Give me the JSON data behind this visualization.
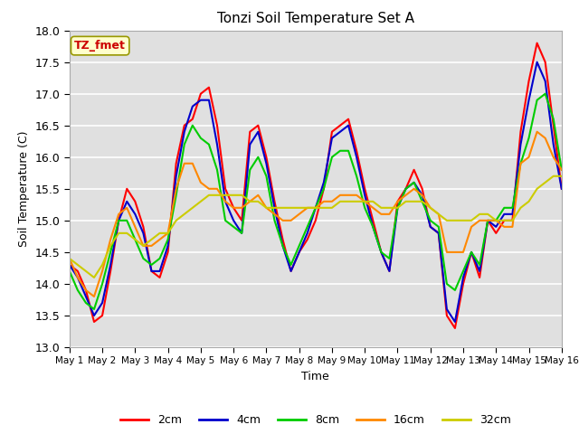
{
  "title": "Tonzi Soil Temperature Set A",
  "xlabel": "Time",
  "ylabel": "Soil Temperature (C)",
  "ylim": [
    13.0,
    18.0
  ],
  "yticks": [
    13.0,
    13.5,
    14.0,
    14.5,
    15.0,
    15.5,
    16.0,
    16.5,
    17.0,
    17.5,
    18.0
  ],
  "xtick_labels": [
    "May 1",
    "May 2",
    "May 3",
    "May 4",
    "May 5",
    "May 6",
    "May 7",
    "May 8",
    "May 9",
    "May 10",
    "May 11",
    "May 12",
    "May 13",
    "May 14",
    "May 15",
    "May 16"
  ],
  "annotation_text": "TZ_fmet",
  "annotation_color": "#cc0000",
  "annotation_bg": "#ffffcc",
  "annotation_border": "#999900",
  "bg_color": "#e0e0e0",
  "fig_color": "#ffffff",
  "grid_color": "#ffffff",
  "series": {
    "2cm": {
      "color": "#ff0000",
      "lw": 1.5
    },
    "4cm": {
      "color": "#0000cc",
      "lw": 1.5
    },
    "8cm": {
      "color": "#00cc00",
      "lw": 1.5
    },
    "16cm": {
      "color": "#ff8800",
      "lw": 1.5
    },
    "32cm": {
      "color": "#cccc00",
      "lw": 1.5
    }
  },
  "x_2cm": [
    0,
    0.25,
    0.5,
    0.75,
    1,
    1.25,
    1.5,
    1.75,
    2,
    2.25,
    2.5,
    2.75,
    3,
    3.25,
    3.5,
    3.75,
    4,
    4.25,
    4.5,
    4.75,
    5,
    5.25,
    5.5,
    5.75,
    6,
    6.25,
    6.5,
    6.75,
    7,
    7.25,
    7.5,
    7.75,
    8,
    8.25,
    8.5,
    8.75,
    9,
    9.25,
    9.5,
    9.75,
    10,
    10.25,
    10.5,
    10.75,
    11,
    11.25,
    11.5,
    11.75,
    12,
    12.25,
    12.5,
    12.75,
    13,
    13.25,
    13.5,
    13.75,
    14,
    14.25,
    14.5,
    14.75,
    15
  ],
  "y_2cm": [
    14.3,
    14.2,
    13.9,
    13.4,
    13.5,
    14.2,
    15.0,
    15.5,
    15.3,
    14.9,
    14.2,
    14.1,
    14.5,
    15.9,
    16.5,
    16.6,
    17.0,
    17.1,
    16.5,
    15.5,
    15.2,
    15.0,
    16.4,
    16.5,
    16.0,
    15.3,
    14.7,
    14.2,
    14.5,
    14.7,
    15.0,
    15.5,
    16.4,
    16.5,
    16.6,
    16.1,
    15.5,
    15.0,
    14.5,
    14.2,
    15.3,
    15.5,
    15.8,
    15.5,
    14.9,
    14.8,
    13.5,
    13.3,
    14.0,
    14.5,
    14.1,
    15.0,
    14.8,
    15.0,
    15.0,
    16.4,
    17.2,
    17.8,
    17.5,
    16.5,
    15.5
  ],
  "x_4cm": [
    0,
    0.25,
    0.5,
    0.75,
    1,
    1.25,
    1.5,
    1.75,
    2,
    2.25,
    2.5,
    2.75,
    3,
    3.25,
    3.5,
    3.75,
    4,
    4.25,
    4.5,
    4.75,
    5,
    5.25,
    5.5,
    5.75,
    6,
    6.25,
    6.5,
    6.75,
    7,
    7.25,
    7.5,
    7.75,
    8,
    8.25,
    8.5,
    8.75,
    9,
    9.25,
    9.5,
    9.75,
    10,
    10.25,
    10.5,
    10.75,
    11,
    11.25,
    11.5,
    11.75,
    12,
    12.25,
    12.5,
    12.75,
    13,
    13.25,
    13.5,
    13.75,
    14,
    14.25,
    14.5,
    14.75,
    15
  ],
  "y_4cm": [
    14.3,
    14.1,
    13.8,
    13.5,
    13.7,
    14.3,
    15.0,
    15.3,
    15.1,
    14.8,
    14.2,
    14.2,
    14.6,
    15.7,
    16.4,
    16.8,
    16.9,
    16.9,
    16.2,
    15.3,
    15.0,
    14.8,
    16.2,
    16.4,
    15.9,
    15.2,
    14.6,
    14.2,
    14.5,
    14.8,
    15.2,
    15.6,
    16.3,
    16.4,
    16.5,
    16.0,
    15.4,
    14.9,
    14.5,
    14.2,
    15.2,
    15.5,
    15.6,
    15.4,
    14.9,
    14.8,
    13.6,
    13.4,
    14.1,
    14.5,
    14.2,
    15.0,
    14.9,
    15.1,
    15.1,
    16.2,
    16.9,
    17.5,
    17.2,
    16.2,
    15.5
  ],
  "x_8cm": [
    0,
    0.25,
    0.5,
    0.75,
    1,
    1.25,
    1.5,
    1.75,
    2,
    2.25,
    2.5,
    2.75,
    3,
    3.25,
    3.5,
    3.75,
    4,
    4.25,
    4.5,
    4.75,
    5,
    5.25,
    5.5,
    5.75,
    6,
    6.25,
    6.5,
    6.75,
    7,
    7.25,
    7.5,
    7.75,
    8,
    8.25,
    8.5,
    8.75,
    9,
    9.25,
    9.5,
    9.75,
    10,
    10.25,
    10.5,
    10.75,
    11,
    11.25,
    11.5,
    11.75,
    12,
    12.25,
    12.5,
    12.75,
    13,
    13.25,
    13.5,
    13.75,
    14,
    14.25,
    14.5,
    14.75,
    15
  ],
  "y_8cm": [
    14.2,
    13.9,
    13.7,
    13.6,
    14.0,
    14.5,
    15.0,
    15.0,
    14.7,
    14.4,
    14.3,
    14.4,
    14.7,
    15.4,
    16.2,
    16.5,
    16.3,
    16.2,
    15.8,
    15.0,
    14.9,
    14.8,
    15.8,
    16.0,
    15.7,
    15.0,
    14.6,
    14.3,
    14.6,
    14.9,
    15.2,
    15.5,
    16.0,
    16.1,
    16.1,
    15.7,
    15.2,
    14.9,
    14.5,
    14.4,
    15.2,
    15.5,
    15.6,
    15.3,
    15.0,
    14.9,
    14.0,
    13.9,
    14.2,
    14.5,
    14.3,
    15.0,
    15.0,
    15.2,
    15.2,
    15.9,
    16.3,
    16.9,
    17.0,
    16.6,
    15.8
  ],
  "x_16cm": [
    0,
    0.25,
    0.5,
    0.75,
    1,
    1.25,
    1.5,
    1.75,
    2,
    2.25,
    2.5,
    2.75,
    3,
    3.25,
    3.5,
    3.75,
    4,
    4.25,
    4.5,
    4.75,
    5,
    5.25,
    5.5,
    5.75,
    6,
    6.25,
    6.5,
    6.75,
    7,
    7.25,
    7.5,
    7.75,
    8,
    8.25,
    8.5,
    8.75,
    9,
    9.25,
    9.5,
    9.75,
    10,
    10.25,
    10.5,
    10.75,
    11,
    11.25,
    11.5,
    11.75,
    12,
    12.25,
    12.5,
    12.75,
    13,
    13.25,
    13.5,
    13.75,
    14,
    14.25,
    14.5,
    14.75,
    15
  ],
  "y_16cm": [
    14.4,
    14.1,
    13.9,
    13.8,
    14.2,
    14.7,
    15.1,
    15.2,
    14.9,
    14.6,
    14.6,
    14.7,
    14.8,
    15.5,
    15.9,
    15.9,
    15.6,
    15.5,
    15.5,
    15.3,
    15.2,
    15.2,
    15.3,
    15.4,
    15.2,
    15.1,
    15.0,
    15.0,
    15.1,
    15.2,
    15.2,
    15.3,
    15.3,
    15.4,
    15.4,
    15.4,
    15.3,
    15.2,
    15.1,
    15.1,
    15.3,
    15.4,
    15.5,
    15.4,
    15.2,
    15.1,
    14.5,
    14.5,
    14.5,
    14.9,
    15.0,
    15.0,
    15.0,
    14.9,
    14.9,
    15.9,
    16.0,
    16.4,
    16.3,
    16.0,
    15.8
  ],
  "x_32cm": [
    0,
    0.25,
    0.5,
    0.75,
    1,
    1.25,
    1.5,
    1.75,
    2,
    2.25,
    2.5,
    2.75,
    3,
    3.25,
    3.5,
    3.75,
    4,
    4.25,
    4.5,
    4.75,
    5,
    5.25,
    5.5,
    5.75,
    6,
    6.25,
    6.5,
    6.75,
    7,
    7.25,
    7.5,
    7.75,
    8,
    8.25,
    8.5,
    8.75,
    9,
    9.25,
    9.5,
    9.75,
    10,
    10.25,
    10.5,
    10.75,
    11,
    11.25,
    11.5,
    11.75,
    12,
    12.25,
    12.5,
    12.75,
    13,
    13.25,
    13.5,
    13.75,
    14,
    14.25,
    14.5,
    14.75,
    15
  ],
  "y_32cm": [
    14.4,
    14.3,
    14.2,
    14.1,
    14.3,
    14.6,
    14.8,
    14.8,
    14.7,
    14.6,
    14.7,
    14.8,
    14.8,
    15.0,
    15.1,
    15.2,
    15.3,
    15.4,
    15.4,
    15.4,
    15.4,
    15.4,
    15.3,
    15.3,
    15.2,
    15.2,
    15.2,
    15.2,
    15.2,
    15.2,
    15.2,
    15.2,
    15.2,
    15.3,
    15.3,
    15.3,
    15.3,
    15.3,
    15.2,
    15.2,
    15.2,
    15.3,
    15.3,
    15.3,
    15.2,
    15.1,
    15.0,
    15.0,
    15.0,
    15.0,
    15.1,
    15.1,
    15.0,
    15.0,
    15.0,
    15.2,
    15.3,
    15.5,
    15.6,
    15.7,
    15.7
  ]
}
